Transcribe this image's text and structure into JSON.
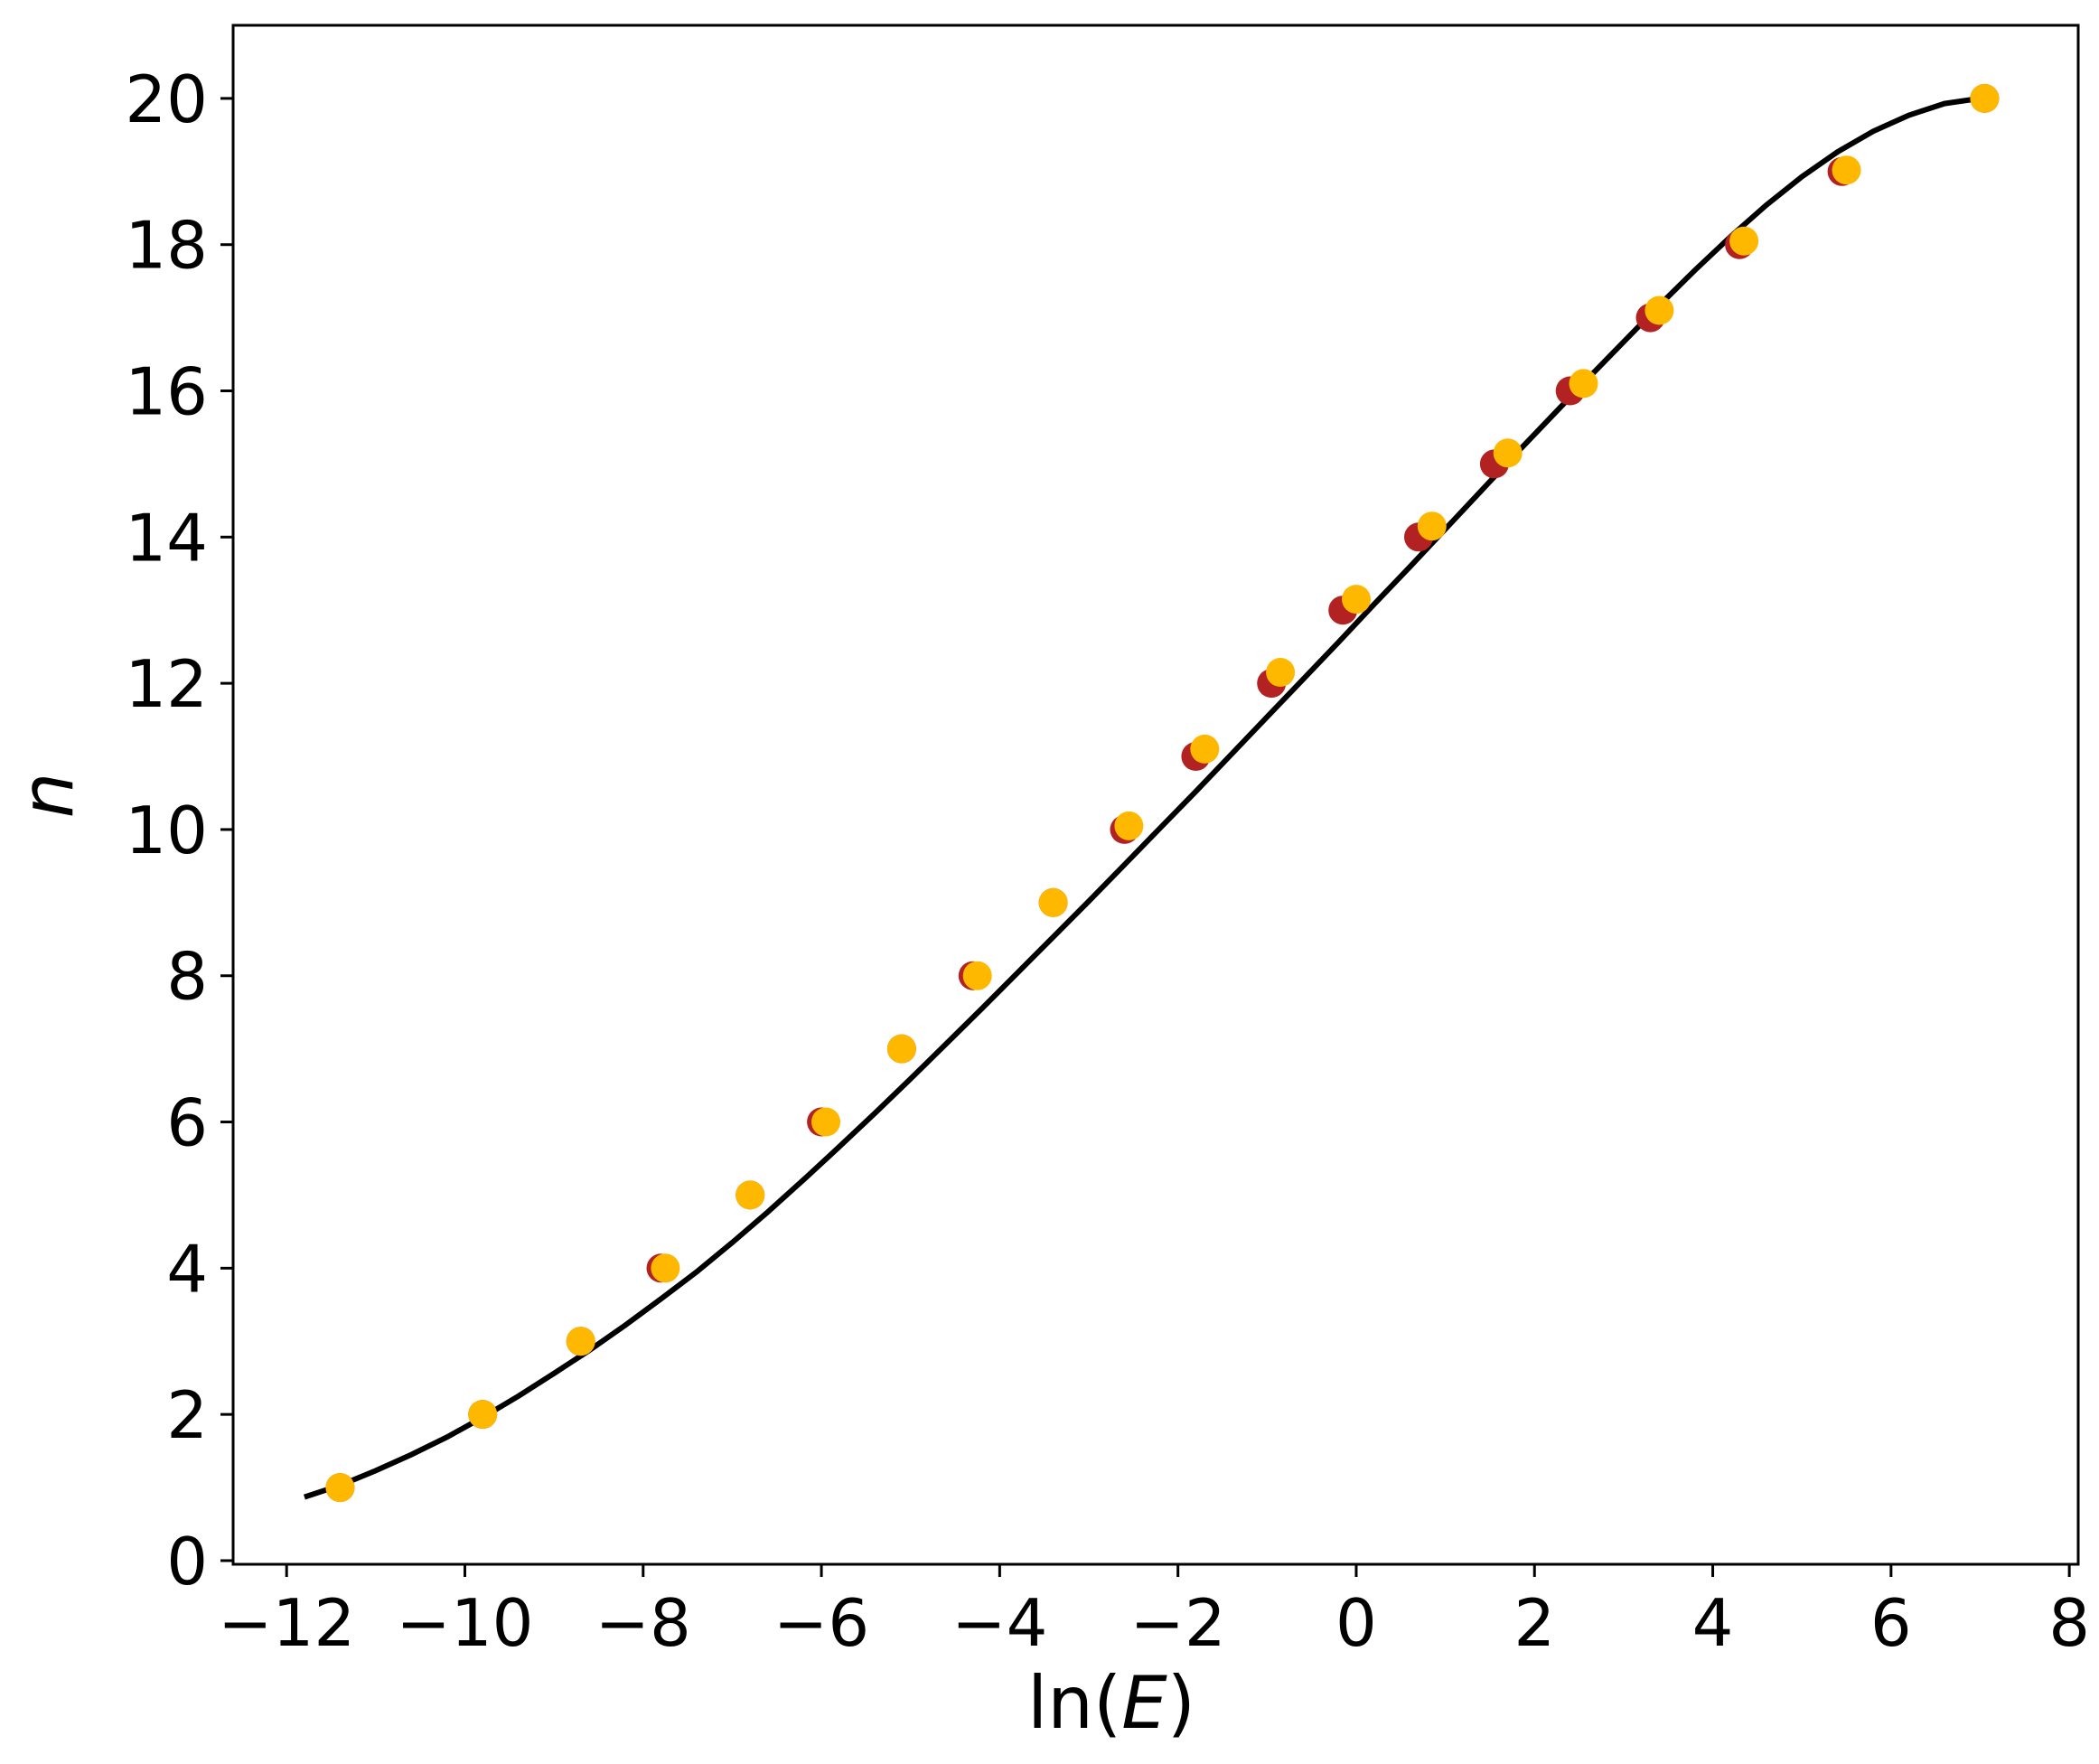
{
  "chart_data": {
    "type": "scatter",
    "xlabel_main": "ln(",
    "xlabel_var": "E",
    "xlabel_close": ")",
    "ylabel": "n",
    "xlim": [
      -12.6,
      8.1
    ],
    "ylim": [
      -0.05,
      21.0
    ],
    "xticks": [
      -12,
      -10,
      -8,
      -6,
      -4,
      -2,
      0,
      2,
      4,
      6,
      8
    ],
    "xtick_labels": [
      "−12",
      "−10",
      "−8",
      "−6",
      "−4",
      "−2",
      "0",
      "2",
      "4",
      "6",
      "8"
    ],
    "yticks": [
      0,
      2,
      4,
      6,
      8,
      10,
      12,
      14,
      16,
      18,
      20
    ],
    "ytick_labels": [
      "0",
      "2",
      "4",
      "6",
      "8",
      "10",
      "12",
      "14",
      "16",
      "18",
      "20"
    ],
    "grid": false,
    "colors": {
      "curve": "#000000",
      "series_red": "#b22222",
      "series_yellow": "#ffb800"
    },
    "curve": {
      "x": [
        -11.8,
        -11.4,
        -11.0,
        -10.6,
        -10.2,
        -9.8,
        -9.4,
        -9.0,
        -8.6,
        -8.2,
        -7.8,
        -7.4,
        -7.0,
        -6.6,
        -6.2,
        -5.8,
        -5.4,
        -5.0,
        -4.6,
        -4.2,
        -3.8,
        -3.4,
        -3.0,
        -2.6,
        -2.2,
        -1.8,
        -1.4,
        -1.0,
        -0.6,
        -0.2,
        0.2,
        0.6,
        1.0,
        1.4,
        1.8,
        2.2,
        2.6,
        3.0,
        3.4,
        3.8,
        4.2,
        4.6,
        5.0,
        5.4,
        5.8,
        6.2,
        6.6,
        7.0
      ],
      "y": [
        0.87,
        1.03,
        1.23,
        1.45,
        1.69,
        1.96,
        2.25,
        2.56,
        2.88,
        3.22,
        3.58,
        3.95,
        4.35,
        4.77,
        5.21,
        5.66,
        6.12,
        6.59,
        7.07,
        7.55,
        8.04,
        8.53,
        9.02,
        9.52,
        10.02,
        10.52,
        11.03,
        11.54,
        12.05,
        12.56,
        13.08,
        13.59,
        14.11,
        14.63,
        15.15,
        15.66,
        16.17,
        16.67,
        17.17,
        17.65,
        18.11,
        18.54,
        18.93,
        19.27,
        19.55,
        19.77,
        19.93,
        20.0
      ]
    },
    "series": [
      {
        "x": [
          -11.4,
          -9.8,
          -8.7,
          -7.8,
          -6.8,
          -6.0,
          -5.1,
          -4.3,
          -3.4,
          -2.6,
          -1.8,
          -0.95,
          -0.15,
          0.7,
          1.55,
          2.4,
          3.3,
          4.3,
          5.45,
          7.05
        ],
        "y": [
          1,
          2,
          3,
          4,
          5,
          6,
          7,
          8,
          9,
          10,
          11,
          12,
          13,
          14,
          15,
          16,
          17,
          18,
          19,
          20
        ]
      },
      {
        "x": [
          -11.4,
          -9.8,
          -8.7,
          -7.75,
          -6.8,
          -5.95,
          -5.1,
          -4.25,
          -3.4,
          -2.55,
          -1.7,
          -0.85,
          0.0,
          0.85,
          1.7,
          2.55,
          3.4,
          4.35,
          5.5,
          7.05
        ],
        "y": [
          1,
          2,
          3,
          4,
          5,
          6,
          7,
          8,
          9,
          10.05,
          11.1,
          12.15,
          13.15,
          14.15,
          15.15,
          16.1,
          17.1,
          18.05,
          19.02,
          20.0
        ]
      }
    ]
  }
}
